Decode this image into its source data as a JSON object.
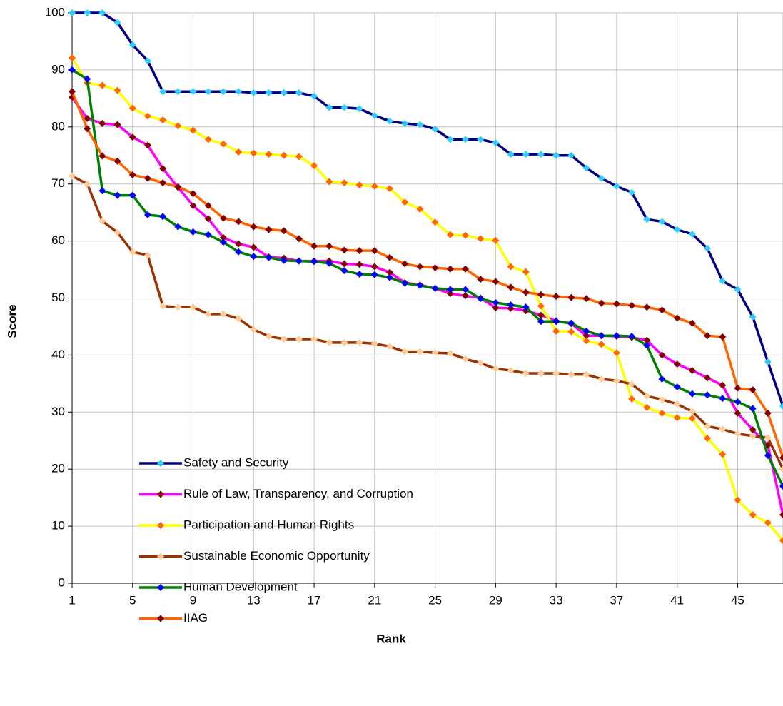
{
  "chart_data": {
    "type": "line",
    "xlabel": "Rank",
    "ylabel": "Score",
    "x": [
      1,
      2,
      3,
      4,
      5,
      6,
      7,
      8,
      9,
      10,
      11,
      12,
      13,
      14,
      15,
      16,
      17,
      18,
      19,
      20,
      21,
      22,
      23,
      24,
      25,
      26,
      27,
      28,
      29,
      30,
      31,
      32,
      33,
      34,
      35,
      36,
      37,
      38,
      39,
      40,
      41,
      42,
      43,
      44,
      45,
      46,
      47,
      48
    ],
    "xlim": [
      1,
      48
    ],
    "xticks": [
      1,
      5,
      9,
      13,
      17,
      21,
      25,
      29,
      33,
      37,
      41,
      45
    ],
    "ylim": [
      0,
      100
    ],
    "yticks": [
      0,
      10,
      20,
      30,
      40,
      50,
      60,
      70,
      80,
      90,
      100
    ],
    "grid": true,
    "legend": "lower left",
    "series": [
      {
        "name": "Safety and Security",
        "color": "#000080",
        "marker_color": "#33ccff",
        "values": [
          100,
          100,
          100,
          98.3,
          94.4,
          91.6,
          86.2,
          86.2,
          86.2,
          86.2,
          86.2,
          86.2,
          86,
          86,
          86,
          86,
          85.4,
          83.4,
          83.4,
          83.2,
          82,
          81,
          80.6,
          80.4,
          79.6,
          77.8,
          77.8,
          77.8,
          77.2,
          75.2,
          75.2,
          75.2,
          75,
          75,
          72.8,
          71,
          69.6,
          68.5,
          63.8,
          63.4,
          62,
          61.2,
          58.7,
          53,
          51.5,
          46.7,
          38.8,
          31
        ]
      },
      {
        "name": "Rule of Law, Transparency, and Corruption",
        "color": "#ff00ff",
        "marker_color": "#800000",
        "values": [
          85.2,
          81.5,
          80.6,
          80.4,
          78.2,
          76.8,
          72.7,
          69.4,
          66.2,
          63.9,
          60.6,
          59.5,
          58.9,
          57.2,
          57,
          56.5,
          56.5,
          56.5,
          56,
          55.9,
          55.5,
          54.5,
          52.7,
          52.3,
          51.7,
          50.8,
          50.4,
          50,
          48.3,
          48.2,
          47.8,
          47,
          46,
          45.5,
          43.4,
          43.4,
          43.3,
          43.1,
          42.6,
          40,
          38.4,
          37.3,
          36,
          34.7,
          29.8,
          26.9,
          24.2,
          12
        ]
      },
      {
        "name": "Participation and Human Rights",
        "color": "#ffff00",
        "marker_color": "#ff6600",
        "values": [
          92.1,
          87.7,
          87.3,
          86.4,
          83.3,
          81.9,
          81.2,
          80.2,
          79.4,
          77.8,
          77,
          75.6,
          75.4,
          75.2,
          75,
          74.8,
          73.2,
          70.4,
          70.2,
          69.8,
          69.6,
          69.2,
          66.8,
          65.6,
          63.3,
          61.1,
          61,
          60.4,
          60.1,
          55.5,
          54.6,
          48.6,
          44.2,
          44.1,
          42.5,
          41.9,
          40.4,
          32.3,
          30.8,
          29.8,
          29,
          28.9,
          25.4,
          22.6,
          14.6,
          12,
          10.6,
          7.5
        ]
      },
      {
        "name": "Sustainable Economic Opportunity",
        "color": "#993300",
        "marker_color": "#ffcc99",
        "values": [
          71.4,
          70,
          63.5,
          61.5,
          58.1,
          57.5,
          48.6,
          48.4,
          48.4,
          47.2,
          47.2,
          46.4,
          44.5,
          43.3,
          42.8,
          42.8,
          42.8,
          42.2,
          42.2,
          42.2,
          42,
          41.5,
          40.6,
          40.6,
          40.4,
          40.3,
          39.3,
          38.6,
          37.6,
          37.3,
          36.8,
          36.8,
          36.8,
          36.6,
          36.6,
          35.8,
          35.5,
          34.9,
          32.8,
          32.2,
          31.4,
          30.1,
          27.5,
          27,
          26.2,
          25.8,
          25.5,
          20
        ]
      },
      {
        "name": "Human Development",
        "color": "#008000",
        "marker_color": "#0000ff",
        "values": [
          90,
          88.4,
          68.8,
          68,
          68,
          64.6,
          64.3,
          62.5,
          61.6,
          61.1,
          59.8,
          58.1,
          57.3,
          57.1,
          56.6,
          56.5,
          56.4,
          56.1,
          54.8,
          54.2,
          54.1,
          53.6,
          52.6,
          52.2,
          51.7,
          51.5,
          51.5,
          49.9,
          49.2,
          48.8,
          48.4,
          45.9,
          45.9,
          45.6,
          44.2,
          43.4,
          43.4,
          43.3,
          41.7,
          35.8,
          34.4,
          33.2,
          33,
          32.4,
          31.8,
          30.6,
          22.4,
          17
        ]
      },
      {
        "name": "IIAG",
        "color": "#ff6600",
        "marker_color": "#800000",
        "values": [
          86.2,
          79.7,
          74.9,
          74,
          71.6,
          71,
          70.2,
          69.5,
          68.3,
          66.2,
          64,
          63.4,
          62.5,
          62,
          61.8,
          60.4,
          59.1,
          59.1,
          58.4,
          58.3,
          58.3,
          57.1,
          56,
          55.5,
          55.3,
          55.1,
          55.1,
          53.3,
          52.9,
          51.9,
          51,
          50.6,
          50.3,
          50.1,
          49.9,
          49.1,
          49,
          48.7,
          48.4,
          47.9,
          46.5,
          45.6,
          43.4,
          43.2,
          34.2,
          33.9,
          29.8,
          22
        ]
      }
    ]
  }
}
